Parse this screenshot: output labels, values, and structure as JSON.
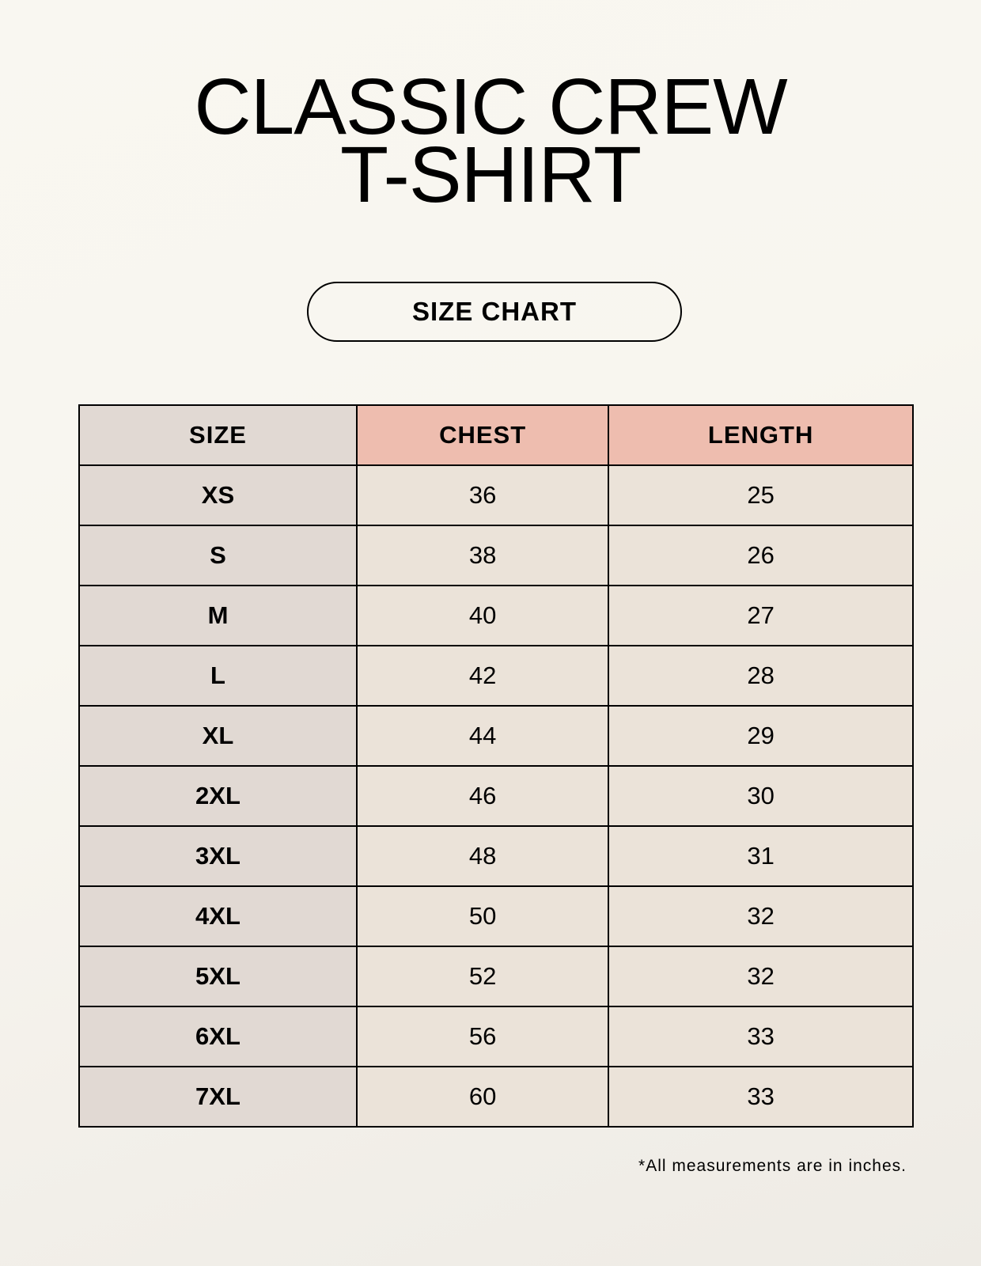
{
  "title": {
    "line1": "CLASSIC CREW",
    "line2": "T-SHIRT"
  },
  "badge": "SIZE CHART",
  "table": {
    "headers": [
      "SIZE",
      "CHEST",
      "LENGTH"
    ],
    "rows": [
      [
        "XS",
        "36",
        "25"
      ],
      [
        "S",
        "38",
        "26"
      ],
      [
        "M",
        "40",
        "27"
      ],
      [
        "L",
        "42",
        "28"
      ],
      [
        "XL",
        "44",
        "29"
      ],
      [
        "2XL",
        "46",
        "30"
      ],
      [
        "3XL",
        "48",
        "31"
      ],
      [
        "4XL",
        "50",
        "32"
      ],
      [
        "5XL",
        "52",
        "32"
      ],
      [
        "6XL",
        "56",
        "33"
      ],
      [
        "7XL",
        "60",
        "33"
      ]
    ]
  },
  "footnote": "*All measurements are in inches.",
  "colors": {
    "size_column": "#e1d9d3",
    "header_accent": "#eebdaf",
    "value_cells": "#ebe3d9"
  }
}
